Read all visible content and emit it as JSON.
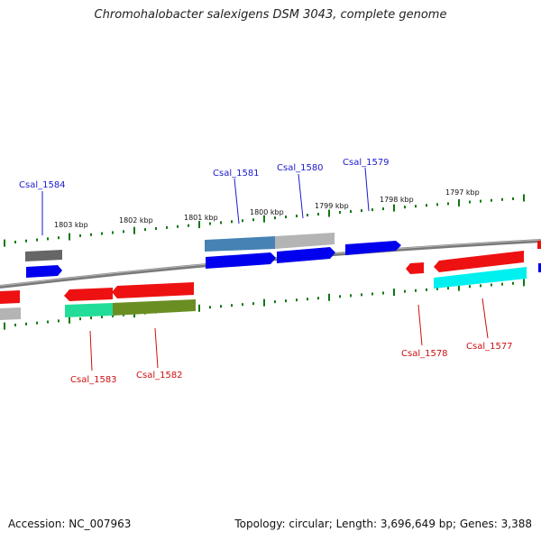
{
  "title": "Chromohalobacter salexigens DSM 3043, complete genome",
  "footer": {
    "accession": "Accession: NC_007963",
    "stats": "Topology: circular; Length: 3,696,649 bp; Genes: 3,388"
  },
  "kbp_labels": [
    "1803 kbp",
    "1802 kbp",
    "1801 kbp",
    "1800 kbp",
    "1799 kbp",
    "1798 kbp",
    "1797 kbp"
  ],
  "gene_labels": {
    "plus": [
      "Csal_1584",
      "Csal_1581",
      "Csal_1580",
      "Csal_1579"
    ],
    "minus": [
      "Csal_1583",
      "Csal_1582",
      "Csal_1578",
      "Csal_1577"
    ]
  },
  "colors": {
    "plus_label": "#1a1acc",
    "minus_label": "#cc1111",
    "plus_gene": "#0000ee",
    "minus_gene": "#ee1111",
    "backbone": "#7a7a7a",
    "ticks": "#117711",
    "cds_steel": "#4682b4",
    "cds_grey": "#b4b4b4",
    "cds_dark_grey": "#666666",
    "cds_green": "#22dd99",
    "cds_olive": "#6b8e23",
    "cds_cyan": "#00f0f0"
  }
}
